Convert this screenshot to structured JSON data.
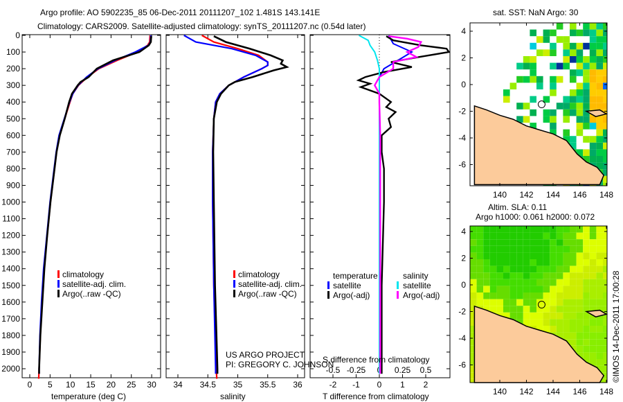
{
  "title": {
    "line1": "Argo profile: AO 5902235_85 06-Dec-2011 20111207_102 1.481S 143.141E",
    "line2": "Climatology: CARS2009. Satellite-adjusted climatology: synTS_20111207.nc (0.54d later)"
  },
  "credit": "US ARGO PROJECT",
  "pi": "PI: GREGORY C. JOHNSON",
  "imos": "©IMOS 14-Dec-2011 17:00:28",
  "colors": {
    "climatology": "#ff0000",
    "satellite": "#0000ff",
    "argo": "#000000",
    "sal_sat": "#00e5ee",
    "sal_argo": "#ff00ff",
    "land": "#fccb9b"
  },
  "chart_data": [
    {
      "type": "line",
      "name": "temperature",
      "xlabel": "temperature (deg C)",
      "ylabel": "",
      "xlim": [
        -2,
        31.5
      ],
      "ylim": [
        2060,
        0
      ],
      "xticks": [
        "0",
        "5",
        "10",
        "15",
        "20",
        "25",
        "30"
      ],
      "xtick_values": [
        0,
        5,
        10,
        15,
        20,
        25,
        30
      ],
      "yticks": [
        "0",
        "100",
        "200",
        "300",
        "400",
        "500",
        "600",
        "700",
        "800",
        "900",
        "1000",
        "1100",
        "1200",
        "1300",
        "1400",
        "1500",
        "1600",
        "1700",
        "1800",
        "1900",
        "2000"
      ],
      "legend": [
        "climatology",
        "satellite-adj. clim.",
        "Argo(..raw -QC)"
      ],
      "series": [
        {
          "name": "climatology",
          "depth": [
            0,
            40,
            60,
            100,
            150,
            200,
            250,
            300,
            350,
            400,
            500,
            600,
            700,
            800,
            1000,
            1200,
            1400,
            1600,
            1800,
            2000,
            2060
          ],
          "values": [
            29.6,
            29.5,
            29,
            26.5,
            21.5,
            17,
            14.2,
            12,
            10.6,
            9.9,
            8.6,
            7.3,
            6.6,
            6.1,
            5.1,
            4.3,
            3.5,
            3,
            2.6,
            2.3,
            2.2
          ]
        },
        {
          "name": "satellite-adj. clim.",
          "depth": [
            0,
            40,
            60,
            100,
            150,
            200,
            250,
            300,
            350,
            400,
            500,
            600,
            700,
            800,
            1000,
            1200,
            1400,
            1600,
            1800,
            2000,
            2030
          ],
          "values": [
            29.8,
            29.7,
            29.2,
            26,
            21,
            16.8,
            14,
            11.9,
            10.6,
            9.8,
            8.5,
            7.2,
            6.5,
            6,
            5,
            4.2,
            3.4,
            2.9,
            2.5,
            2.3,
            2.3
          ]
        },
        {
          "name": "Argo(..raw -QC)",
          "depth": [
            5,
            40,
            60,
            100,
            150,
            200,
            250,
            280,
            300,
            350,
            400,
            500,
            600,
            700,
            800,
            1000,
            1200,
            1400,
            1600,
            1800,
            2000,
            2030
          ],
          "values": [
            29.9,
            29.8,
            29.3,
            27,
            20.5,
            16.5,
            14.5,
            12.5,
            11.8,
            10.4,
            9.7,
            8.6,
            7.4,
            6.6,
            6.1,
            5.1,
            4.3,
            3.6,
            3.1,
            2.6,
            2.3,
            2.3
          ]
        }
      ]
    },
    {
      "type": "line",
      "name": "salinity",
      "xlabel": "salinity",
      "xlim": [
        33.8,
        36.1
      ],
      "ylim": [
        2060,
        0
      ],
      "xticks": [
        "34",
        "34.5",
        "35",
        "35.5",
        "36"
      ],
      "xtick_values": [
        34,
        34.5,
        35,
        35.5,
        36
      ],
      "legend": [
        "climatology",
        "satellite-adj. clim.",
        "Argo(..raw -QC)"
      ],
      "series": [
        {
          "name": "climatology",
          "depth": [
            0,
            40,
            80,
            120,
            160,
            180,
            200,
            250,
            300,
            350,
            400,
            500,
            700,
            1000,
            1500,
            2000,
            2060
          ],
          "values": [
            34.4,
            34.6,
            35.0,
            35.35,
            35.5,
            35.5,
            35.4,
            35.1,
            34.85,
            34.7,
            34.63,
            34.6,
            34.58,
            34.58,
            34.6,
            34.64,
            34.65
          ]
        },
        {
          "name": "satellite-adj. clim.",
          "depth": [
            0,
            40,
            80,
            120,
            160,
            180,
            200,
            250,
            300,
            350,
            400,
            500,
            700,
            1000,
            1500,
            2000,
            2030
          ],
          "values": [
            34.1,
            34.3,
            34.9,
            35.3,
            35.5,
            35.5,
            35.4,
            35.1,
            34.85,
            34.7,
            34.63,
            34.6,
            34.58,
            34.58,
            34.6,
            34.63,
            34.63
          ]
        },
        {
          "name": "Argo(..raw -QC)",
          "depth": [
            5,
            40,
            80,
            120,
            150,
            170,
            190,
            210,
            250,
            280,
            300,
            350,
            400,
            500,
            700,
            1000,
            1500,
            2000,
            2030
          ],
          "values": [
            34.6,
            34.8,
            35.2,
            35.55,
            35.75,
            35.72,
            35.82,
            35.6,
            35.25,
            34.95,
            34.85,
            34.72,
            34.65,
            34.6,
            34.59,
            34.6,
            34.62,
            34.66,
            34.66
          ]
        }
      ]
    },
    {
      "type": "line",
      "name": "difference",
      "xlabel": "T difference from climatology",
      "x2label": "S difference from climatology",
      "xlim": [
        -3,
        3
      ],
      "xticks": [
        "-2",
        "-1",
        "0",
        "1",
        "2"
      ],
      "xtick_values": [
        -2,
        -1,
        0,
        1,
        2
      ],
      "x2ticks": [
        "-0.5",
        "-0.25",
        "0",
        "0.25",
        "0.5"
      ],
      "x2tick_values": [
        -0.5,
        -0.25,
        0,
        0.25,
        0.5
      ],
      "legend_t_title": "temperature",
      "legend_s_title": "salinity",
      "legend_t": [
        "satellite",
        "Argo(-adj)"
      ],
      "legend_s": [
        "satellite",
        "Argo(-adj)"
      ],
      "series": [
        {
          "name": "T satellite",
          "axis": "T",
          "depth": [
            0,
            50,
            100,
            150,
            200,
            250,
            300,
            400,
            600,
            1000,
            2030
          ],
          "values": [
            0.4,
            0.6,
            1.4,
            0.8,
            0.2,
            0,
            0,
            0,
            0,
            0,
            0
          ]
        },
        {
          "name": "T Argo(-adj)",
          "axis": "T",
          "depth": [
            5,
            30,
            60,
            80,
            100,
            130,
            160,
            190,
            220,
            250,
            270,
            290,
            310,
            350,
            400,
            430,
            460,
            500,
            550,
            600,
            700,
            800,
            1000,
            1500,
            2030
          ],
          "values": [
            0.3,
            0.6,
            1.8,
            2.9,
            3.0,
            1.7,
            0.5,
            1.4,
            0.2,
            -0.6,
            -0.9,
            -0.4,
            -0.8,
            0.0,
            0.5,
            0.3,
            0.7,
            0.4,
            0.5,
            0.1,
            0.1,
            0.2,
            0.2,
            0.1,
            0.1
          ]
        },
        {
          "name": "S satellite",
          "axis": "S",
          "depth": [
            0,
            30,
            60,
            100,
            150,
            200,
            300,
            400,
            600,
            1000,
            2030
          ],
          "values": [
            -0.22,
            -0.12,
            -0.1,
            -0.05,
            -0.02,
            0,
            0,
            0,
            0,
            0,
            0
          ]
        },
        {
          "name": "S Argo(-adj)",
          "axis": "S",
          "depth": [
            5,
            20,
            40,
            70,
            100,
            130,
            160,
            200,
            250,
            300,
            350,
            400,
            600,
            1000,
            2030
          ],
          "values": [
            0.1,
            0.3,
            0.45,
            0.42,
            0.3,
            0.4,
            0.15,
            0.15,
            0,
            -0.05,
            0,
            0,
            0.01,
            0.01,
            0.01
          ]
        }
      ]
    },
    {
      "type": "heatmap",
      "name": "sst-map",
      "title": "sat. SST: NaN Argo: 30",
      "xticks": [
        "140",
        "142",
        "144",
        "146",
        "148"
      ],
      "xtick_values": [
        140,
        142,
        144,
        146,
        148
      ],
      "yticks": [
        "4",
        "2",
        "0",
        "-2",
        "-4",
        "-6"
      ],
      "ytick_values": [
        4,
        2,
        0,
        -2,
        -4,
        -6
      ],
      "argo_position": {
        "lon": 143.141,
        "lat": -1.481
      }
    },
    {
      "type": "heatmap",
      "name": "sla-map",
      "title1": "Altim. SLA: 0.11",
      "title2": "Argo h1000: 0.061 h2000: 0.072",
      "xticks": [
        "140",
        "142",
        "144",
        "146",
        "148"
      ],
      "xtick_values": [
        140,
        142,
        144,
        146,
        148
      ],
      "yticks": [
        "4",
        "2",
        "0",
        "-2",
        "-4",
        "-6"
      ],
      "ytick_values": [
        4,
        2,
        0,
        -2,
        -4,
        -6
      ],
      "argo_position": {
        "lon": 143.141,
        "lat": -1.481
      }
    }
  ]
}
